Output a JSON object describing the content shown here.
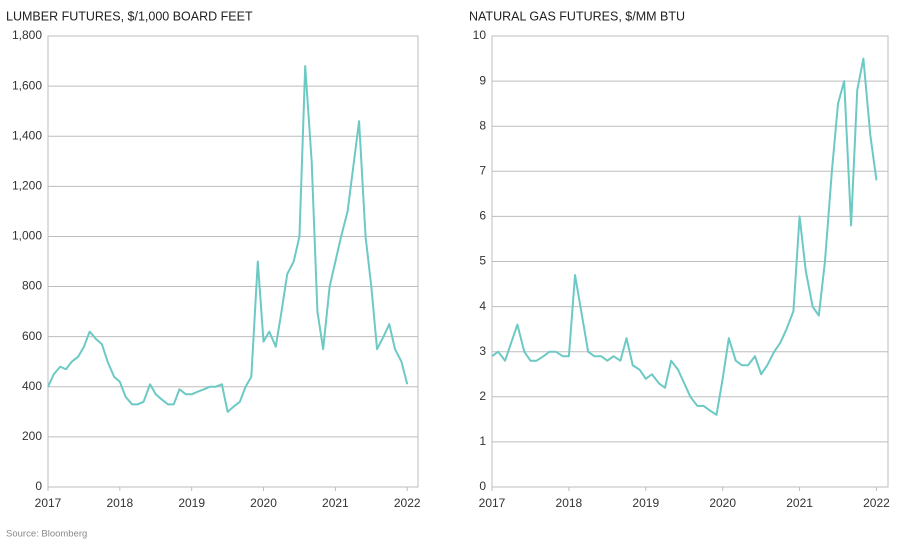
{
  "source": "Source: Bloomberg",
  "chart_data": [
    {
      "type": "line",
      "title": "LUMBER FUTURES, $/1,000 BOARD FEET",
      "x": [
        2017,
        2017.08,
        2017.17,
        2017.25,
        2017.33,
        2017.42,
        2017.5,
        2017.58,
        2017.67,
        2017.75,
        2017.83,
        2017.92,
        2018,
        2018.08,
        2018.17,
        2018.25,
        2018.33,
        2018.42,
        2018.5,
        2018.58,
        2018.67,
        2018.75,
        2018.83,
        2018.92,
        2019,
        2019.08,
        2019.17,
        2019.25,
        2019.33,
        2019.42,
        2019.5,
        2019.58,
        2019.67,
        2019.75,
        2019.83,
        2019.92,
        2020,
        2020.08,
        2020.17,
        2020.25,
        2020.33,
        2020.42,
        2020.5,
        2020.58,
        2020.67,
        2020.75,
        2020.83,
        2020.92,
        2021,
        2021.08,
        2021.17,
        2021.25,
        2021.33,
        2021.42,
        2021.5,
        2021.58,
        2021.67,
        2021.75,
        2021.83,
        2021.92,
        2022
      ],
      "series": [
        {
          "name": "Lumber",
          "color": "#6cc9c4",
          "values": [
            400,
            450,
            480,
            470,
            500,
            520,
            560,
            620,
            590,
            570,
            500,
            440,
            420,
            360,
            330,
            330,
            340,
            410,
            370,
            350,
            330,
            330,
            390,
            370,
            370,
            380,
            390,
            400,
            400,
            410,
            300,
            320,
            340,
            400,
            440,
            900,
            580,
            620,
            560,
            700,
            850,
            900,
            1000,
            1680,
            1300,
            700,
            550,
            800,
            900,
            1000,
            1100,
            1280,
            1460,
            1000,
            800,
            550,
            600,
            650,
            550,
            500,
            410
          ]
        }
      ],
      "xlim": [
        2017,
        2022.15
      ],
      "xticks": [
        2017,
        2018,
        2019,
        2020,
        2021,
        2022
      ],
      "ylim": [
        0,
        1800
      ],
      "yticks": [
        0,
        200,
        400,
        600,
        800,
        {
          "value": 1000,
          "label": "1,000"
        },
        {
          "value": 1200,
          "label": "1,200"
        },
        {
          "value": 1400,
          "label": "1,400"
        },
        {
          "value": 1600,
          "label": "1,600"
        },
        {
          "value": 1800,
          "label": "1,800"
        }
      ],
      "grid": true
    },
    {
      "type": "line",
      "title": "NATURAL GAS FUTURES, $/MM BTU",
      "x": [
        2017,
        2017.08,
        2017.17,
        2017.25,
        2017.33,
        2017.42,
        2017.5,
        2017.58,
        2017.67,
        2017.75,
        2017.83,
        2017.92,
        2018,
        2018.08,
        2018.17,
        2018.25,
        2018.33,
        2018.42,
        2018.5,
        2018.58,
        2018.67,
        2018.75,
        2018.83,
        2018.92,
        2019,
        2019.08,
        2019.17,
        2019.25,
        2019.33,
        2019.42,
        2019.5,
        2019.58,
        2019.67,
        2019.75,
        2019.83,
        2019.92,
        2020,
        2020.08,
        2020.17,
        2020.25,
        2020.33,
        2020.42,
        2020.5,
        2020.58,
        2020.67,
        2020.75,
        2020.83,
        2020.92,
        2021,
        2021.08,
        2021.17,
        2021.25,
        2021.33,
        2021.42,
        2021.5,
        2021.58,
        2021.67,
        2021.75,
        2021.83,
        2021.92,
        2022
      ],
      "series": [
        {
          "name": "Natural gas",
          "color": "#6cc9c4",
          "values": [
            2.9,
            3.0,
            2.8,
            3.2,
            3.6,
            3.0,
            2.8,
            2.8,
            2.9,
            3.0,
            3.0,
            2.9,
            2.9,
            4.7,
            3.8,
            3.0,
            2.9,
            2.9,
            2.8,
            2.9,
            2.8,
            3.3,
            2.7,
            2.6,
            2.4,
            2.5,
            2.3,
            2.2,
            2.8,
            2.6,
            2.3,
            2.0,
            1.8,
            1.8,
            1.7,
            1.6,
            2.4,
            3.3,
            2.8,
            2.7,
            2.7,
            2.9,
            2.5,
            2.7,
            3.0,
            3.2,
            3.5,
            3.9,
            6.0,
            4.8,
            4.0,
            3.8,
            5.0,
            7.0,
            8.5,
            9.0,
            5.8,
            8.8,
            9.5,
            7.8,
            6.8
          ]
        }
      ],
      "xlim": [
        2017,
        2022.15
      ],
      "xticks": [
        2017,
        2018,
        2019,
        2020,
        2021,
        2022
      ],
      "ylim": [
        0,
        10
      ],
      "yticks": [
        0,
        1,
        2,
        3,
        4,
        5,
        6,
        7,
        8,
        9,
        10
      ],
      "grid": true
    }
  ]
}
